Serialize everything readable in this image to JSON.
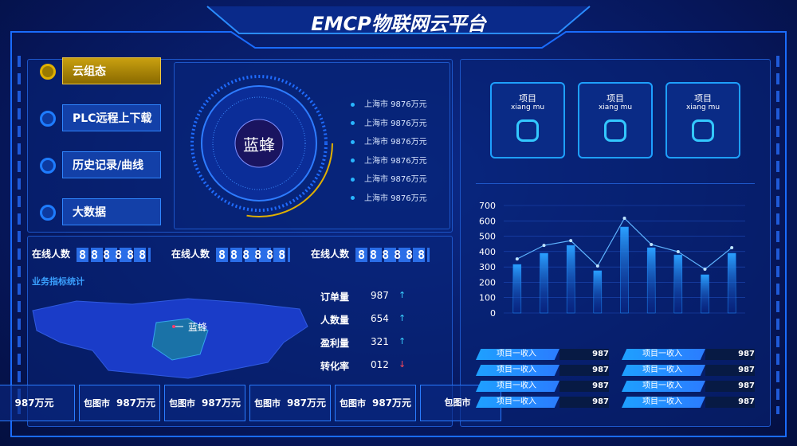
{
  "header": {
    "title": "EMCP物联网云平台"
  },
  "menu": [
    "云组态",
    "PLC远程上下载",
    "历史记录/曲线",
    "大数据"
  ],
  "center": {
    "label": "蓝蜂",
    "list": [
      "上海市 9876万元",
      "上海市 9876万元",
      "上海市 9876万元",
      "上海市 9876万元",
      "上海市 9876万元",
      "上海市 9876万元"
    ]
  },
  "icons": [
    {
      "title": "项目",
      "pinyin": "xiang mu"
    },
    {
      "title": "项目",
      "pinyin": "xiang mu"
    },
    {
      "title": "项目",
      "pinyin": "xiang mu"
    }
  ],
  "online": [
    {
      "label": "在线人数",
      "digits": "888888"
    },
    {
      "label": "在线人数",
      "digits": "888888"
    },
    {
      "label": "在线人数",
      "digits": "888888"
    }
  ],
  "stats": {
    "title": "业务指标统计",
    "map_label": "蓝蜂",
    "items": [
      {
        "name": "订单量",
        "value": "987",
        "trend": "↑"
      },
      {
        "name": "人数量",
        "value": "654",
        "trend": "↑"
      },
      {
        "name": "盈利量",
        "value": "321",
        "trend": "↑"
      },
      {
        "name": "转化率",
        "value": "012",
        "trend": "↓"
      }
    ]
  },
  "ticker": [
    {
      "value": "987万元"
    },
    {
      "city": "包图市",
      "value": "987万元"
    },
    {
      "city": "包图市",
      "value": "987万元"
    },
    {
      "city": "包图市",
      "value": "987万元"
    },
    {
      "city": "包图市",
      "value": "987万元"
    },
    {
      "city": "包图市"
    }
  ],
  "chart_data": {
    "type": "bar",
    "categories": [
      null,
      null,
      null,
      null,
      null,
      null,
      null,
      null,
      null
    ],
    "series": [
      {
        "type": "bar",
        "color": "#1e8fff",
        "values": [
          316,
          389,
          440,
          275,
          560,
          425,
          378,
          249,
          389
        ]
      },
      {
        "type": "line",
        "color": "#5fb4ff",
        "values": [
          352,
          440,
          471,
          306,
          617,
          446,
          399,
          285,
          425
        ]
      }
    ],
    "ylim": [
      0,
      700
    ],
    "yticks": [
      0,
      100,
      200,
      300,
      400,
      500,
      600,
      700
    ],
    "grid": true
  },
  "income": [
    {
      "label": "项目一收入",
      "value": 987
    },
    {
      "label": "项目一收入",
      "value": 987
    },
    {
      "label": "项目一收入",
      "value": 987
    },
    {
      "label": "项目一收入",
      "value": 987
    },
    {
      "label": "项目一收入",
      "value": 987
    },
    {
      "label": "项目一收入",
      "value": 987
    },
    {
      "label": "项目一收入",
      "value": 987
    },
    {
      "label": "项目一收入",
      "value": 987
    }
  ]
}
